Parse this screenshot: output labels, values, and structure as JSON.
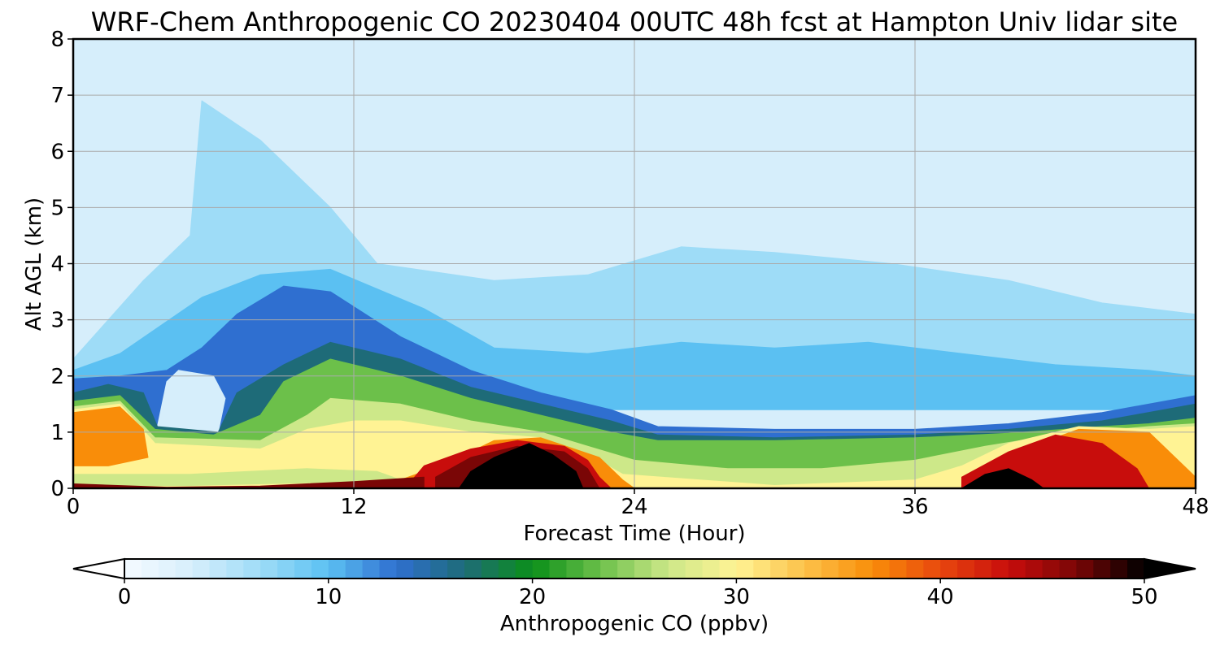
{
  "chart_data": {
    "type": "heatmap",
    "title": "WRF-Chem Anthropogenic CO  20230404 00UTC 48h fcst at Hampton Univ lidar site",
    "xlabel": "Forecast Time (Hour)",
    "ylabel": "Alt AGL (km)",
    "xlim": [
      0,
      48
    ],
    "ylim": [
      0,
      8
    ],
    "xticks": [
      "0",
      "12",
      "24",
      "36",
      "48"
    ],
    "yticks": [
      "0",
      "1",
      "2",
      "3",
      "4",
      "5",
      "6",
      "7",
      "8"
    ],
    "grid": true,
    "colorbar": {
      "label": "Anthropogenic CO  (ppbv)",
      "range": [
        0,
        50
      ],
      "ticks": [
        "0",
        "10",
        "20",
        "30",
        "40",
        "50"
      ],
      "extend": "both",
      "colors": [
        "#f5fbff",
        "#d6eefb",
        "#9edcf7",
        "#5bc0f2",
        "#2f6fd0",
        "#1e6b78",
        "#0a8f19",
        "#6cc04a",
        "#cde889",
        "#fff394",
        "#fcc24a",
        "#f98d09",
        "#e8470e",
        "#c80d0c",
        "#7a0606",
        "#000000"
      ]
    },
    "regions": [
      {
        "name": "background",
        "level": 1,
        "polygon": [
          [
            0,
            0
          ],
          [
            48,
            0
          ],
          [
            48,
            8
          ],
          [
            0,
            8
          ]
        ]
      },
      {
        "name": "upper-faint-plume",
        "level": 2,
        "polygon": [
          [
            0,
            2.3
          ],
          [
            3,
            3.7
          ],
          [
            5,
            4.5
          ],
          [
            5.5,
            6.9
          ],
          [
            8,
            6.2
          ],
          [
            11,
            5.0
          ],
          [
            13,
            4.0
          ],
          [
            18,
            3.7
          ],
          [
            22,
            3.8
          ],
          [
            26,
            4.3
          ],
          [
            30,
            4.2
          ],
          [
            35,
            4.0
          ],
          [
            40,
            3.7
          ],
          [
            44,
            3.3
          ],
          [
            48,
            3.1
          ],
          [
            48,
            1.5
          ],
          [
            0,
            1.5
          ]
        ]
      },
      {
        "name": "light-blue-layer",
        "level": 3,
        "polygon": [
          [
            0,
            2.1
          ],
          [
            2,
            2.4
          ],
          [
            5.5,
            3.4
          ],
          [
            8,
            3.8
          ],
          [
            11,
            3.9
          ],
          [
            15,
            3.2
          ],
          [
            18,
            2.5
          ],
          [
            22,
            2.4
          ],
          [
            26,
            2.6
          ],
          [
            30,
            2.5
          ],
          [
            34,
            2.6
          ],
          [
            38,
            2.4
          ],
          [
            42,
            2.2
          ],
          [
            46,
            2.1
          ],
          [
            48,
            2.0
          ],
          [
            48,
            1.4
          ],
          [
            0,
            1.4
          ]
        ]
      },
      {
        "name": "mid-blue-layer",
        "level": 4,
        "polygon": [
          [
            0,
            1.95
          ],
          [
            2,
            2.0
          ],
          [
            4,
            2.1
          ],
          [
            5.5,
            2.5
          ],
          [
            7,
            3.1
          ],
          [
            9,
            3.6
          ],
          [
            11,
            3.5
          ],
          [
            14,
            2.7
          ],
          [
            17,
            2.1
          ],
          [
            20,
            1.7
          ],
          [
            23,
            1.4
          ],
          [
            25,
            1.1
          ],
          [
            30,
            1.05
          ],
          [
            36,
            1.05
          ],
          [
            40,
            1.15
          ],
          [
            44,
            1.35
          ],
          [
            48,
            1.65
          ],
          [
            48,
            0
          ],
          [
            0,
            0
          ]
        ]
      },
      {
        "name": "white-gap",
        "level": 1,
        "polygon": [
          [
            3.6,
            1.1
          ],
          [
            4,
            1.9
          ],
          [
            4.5,
            2.1
          ],
          [
            6,
            2.0
          ],
          [
            6.5,
            1.6
          ],
          [
            6.2,
            1.0
          ],
          [
            5,
            0.95
          ]
        ]
      },
      {
        "name": "dark-blue-band",
        "level": 5,
        "polygon": [
          [
            0,
            1.7
          ],
          [
            1.5,
            1.85
          ],
          [
            3,
            1.7
          ],
          [
            3.6,
            1.1
          ],
          [
            6.2,
            1.0
          ],
          [
            7,
            1.7
          ],
          [
            9,
            2.2
          ],
          [
            11,
            2.6
          ],
          [
            14,
            2.3
          ],
          [
            17,
            1.8
          ],
          [
            20,
            1.5
          ],
          [
            23,
            1.2
          ],
          [
            25,
            0.95
          ],
          [
            30,
            0.9
          ],
          [
            36,
            0.95
          ],
          [
            40,
            1.05
          ],
          [
            44,
            1.2
          ],
          [
            48,
            1.5
          ],
          [
            48,
            0
          ],
          [
            0,
            0
          ]
        ]
      },
      {
        "name": "green-band",
        "level": 7,
        "polygon": [
          [
            0,
            1.55
          ],
          [
            2,
            1.65
          ],
          [
            3.5,
            1.05
          ],
          [
            6,
            0.95
          ],
          [
            8,
            1.3
          ],
          [
            9,
            1.9
          ],
          [
            11,
            2.3
          ],
          [
            14,
            2.0
          ],
          [
            17,
            1.6
          ],
          [
            20,
            1.3
          ],
          [
            23,
            1.0
          ],
          [
            25,
            0.85
          ],
          [
            30,
            0.85
          ],
          [
            36,
            0.9
          ],
          [
            40,
            0.98
          ],
          [
            44,
            1.1
          ],
          [
            46,
            1.15
          ],
          [
            48,
            1.25
          ],
          [
            48,
            0
          ],
          [
            0,
            0
          ]
        ]
      },
      {
        "name": "light-green-band",
        "level": 8,
        "polygon": [
          [
            0,
            1.45
          ],
          [
            2,
            1.55
          ],
          [
            3.5,
            0.9
          ],
          [
            8,
            0.85
          ],
          [
            10,
            1.3
          ],
          [
            11,
            1.6
          ],
          [
            14,
            1.5
          ],
          [
            17,
            1.2
          ],
          [
            20,
            1.0
          ],
          [
            22,
            0.75
          ],
          [
            24,
            0.5
          ],
          [
            28,
            0.35
          ],
          [
            32,
            0.35
          ],
          [
            36,
            0.5
          ],
          [
            39,
            0.75
          ],
          [
            42,
            0.95
          ],
          [
            46,
            1.1
          ],
          [
            48,
            1.15
          ],
          [
            48,
            0
          ],
          [
            0,
            0
          ]
        ]
      },
      {
        "name": "yellow-band",
        "level": 9,
        "polygon": [
          [
            0,
            1.4
          ],
          [
            2,
            1.5
          ],
          [
            3.5,
            0.8
          ],
          [
            8,
            0.7
          ],
          [
            10,
            1.05
          ],
          [
            12,
            1.2
          ],
          [
            14,
            1.2
          ],
          [
            17,
            1.0
          ],
          [
            20,
            0.9
          ],
          [
            22,
            0.6
          ],
          [
            23.5,
            0.25
          ],
          [
            30,
            0.05
          ],
          [
            36,
            0.15
          ],
          [
            38,
            0.4
          ],
          [
            40,
            0.8
          ],
          [
            43,
            1.1
          ],
          [
            46,
            1.05
          ],
          [
            48,
            1.1
          ],
          [
            48,
            0
          ],
          [
            0,
            0
          ]
        ]
      },
      {
        "name": "lower-green-seam",
        "level": 8,
        "polygon": [
          [
            0,
            0.25
          ],
          [
            5,
            0.25
          ],
          [
            10,
            0.35
          ],
          [
            13,
            0.3
          ],
          [
            14,
            0.15
          ],
          [
            10,
            0.1
          ],
          [
            5,
            0.05
          ],
          [
            0,
            0.05
          ]
        ]
      },
      {
        "name": "orange-band",
        "level": 11,
        "polygon": [
          [
            0,
            1.35
          ],
          [
            2,
            1.45
          ],
          [
            3,
            1.05
          ],
          [
            3.2,
            0.55
          ],
          [
            1.5,
            0.4
          ],
          [
            0,
            0.4
          ]
        ]
      },
      {
        "name": "orange-right",
        "level": 11,
        "polygon": [
          [
            39,
            0.3
          ],
          [
            41,
            0.75
          ],
          [
            43,
            1.05
          ],
          [
            46,
            1.0
          ],
          [
            48,
            0.2
          ],
          [
            48,
            0
          ],
          [
            39,
            0
          ]
        ]
      },
      {
        "name": "orange-mid",
        "level": 11,
        "polygon": [
          [
            14,
            0.15
          ],
          [
            16,
            0.45
          ],
          [
            18,
            0.85
          ],
          [
            20,
            0.9
          ],
          [
            22.5,
            0.55
          ],
          [
            23.5,
            0.15
          ],
          [
            24,
            0
          ],
          [
            14,
            0
          ]
        ]
      },
      {
        "name": "red-core",
        "level": 13,
        "polygon": [
          [
            14.5,
            0.15
          ],
          [
            15,
            0.4
          ],
          [
            17,
            0.7
          ],
          [
            19,
            0.85
          ],
          [
            21,
            0.75
          ],
          [
            22,
            0.5
          ],
          [
            22.5,
            0.2
          ],
          [
            23,
            0
          ],
          [
            14.5,
            0
          ]
        ]
      },
      {
        "name": "red-right",
        "level": 13,
        "polygon": [
          [
            38,
            0.2
          ],
          [
            40,
            0.65
          ],
          [
            42,
            0.95
          ],
          [
            44,
            0.8
          ],
          [
            45.5,
            0.35
          ],
          [
            46,
            0
          ],
          [
            38,
            0
          ]
        ]
      },
      {
        "name": "dark-red-core",
        "level": 14,
        "polygon": [
          [
            15.5,
            0.2
          ],
          [
            17,
            0.55
          ],
          [
            19,
            0.75
          ],
          [
            21,
            0.65
          ],
          [
            22,
            0.35
          ],
          [
            22.5,
            0
          ],
          [
            15.5,
            0
          ]
        ]
      },
      {
        "name": "black-core",
        "level": 15,
        "polygon": [
          [
            16.5,
            0
          ],
          [
            17,
            0.3
          ],
          [
            18,
            0.55
          ],
          [
            19.5,
            0.8
          ],
          [
            20.5,
            0.6
          ],
          [
            21.5,
            0.3
          ],
          [
            21.8,
            0
          ]
        ]
      },
      {
        "name": "black-right",
        "level": 15,
        "polygon": [
          [
            38,
            0
          ],
          [
            39,
            0.25
          ],
          [
            40,
            0.35
          ],
          [
            41,
            0.15
          ],
          [
            41.5,
            0
          ]
        ]
      },
      {
        "name": "surface-dark",
        "level": 14,
        "polygon": [
          [
            0,
            0.08
          ],
          [
            4,
            0.02
          ],
          [
            8,
            0.04
          ],
          [
            12,
            0.12
          ],
          [
            15,
            0.2
          ],
          [
            15,
            0
          ],
          [
            0,
            0
          ]
        ]
      }
    ]
  }
}
